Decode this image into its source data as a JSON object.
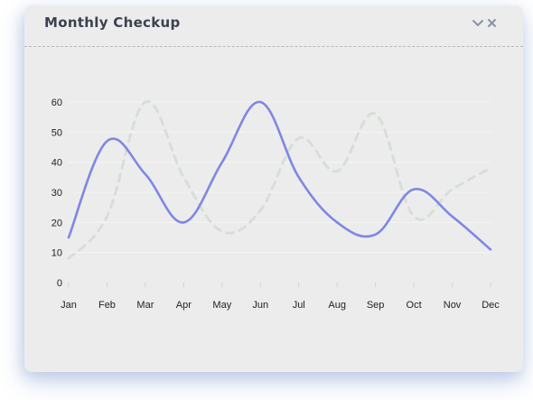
{
  "widget": {
    "title": "Monthly Checkup",
    "controls": [
      "chevron-down-icon",
      "close-icon"
    ]
  },
  "colors": {
    "card_bg": "#ececec",
    "series_primary": "#7f86e6",
    "series_secondary": "#d6dfd6",
    "gridline": "#f5f5f5",
    "text": "#222222",
    "title": "#3b4150"
  },
  "chart_data": {
    "type": "line",
    "categories": [
      "Jan",
      "Feb",
      "Mar",
      "Apr",
      "May",
      "Jun",
      "Jul",
      "Aug",
      "Sep",
      "Oct",
      "Nov",
      "Dec"
    ],
    "series": [
      {
        "values": [
          15,
          47,
          36,
          20,
          40,
          60,
          35,
          20,
          16,
          31,
          22,
          11
        ],
        "style": "solid"
      },
      {
        "values": [
          8,
          22,
          60,
          35,
          17,
          24,
          48,
          37,
          56,
          22,
          31,
          38
        ],
        "style": "dashed"
      }
    ],
    "yticks": [
      0,
      10,
      20,
      30,
      40,
      50,
      60
    ],
    "ylim": [
      0,
      60
    ],
    "grid": true,
    "title": "",
    "xlabel": "",
    "ylabel": ""
  }
}
